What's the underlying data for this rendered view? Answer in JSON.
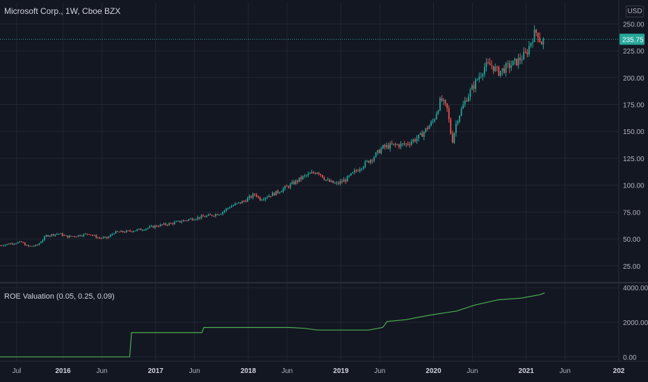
{
  "header": {
    "title": "Microsoft Corp., 1W, Cboe BZX",
    "currency": "USD",
    "indicator_title": "ROE Valuation (0.05, 0.25, 0.09)"
  },
  "colors": {
    "background": "#131722",
    "grid": "#232733",
    "up": "#26a69a",
    "down": "#ef5350",
    "indicator_line": "#4caf50",
    "axis_text": "#b2b5be",
    "last_price_bg": "#26a69a"
  },
  "chart_data": [
    {
      "type": "candlestick",
      "title": "Microsoft Corp., 1W, Cboe BZX",
      "ylabel": "USD",
      "ylim": [
        10,
        258
      ],
      "xlim": [
        2015.32,
        2022.0
      ],
      "y_ticks": [
        "25.00",
        "50.00",
        "75.00",
        "100.00",
        "125.00",
        "150.00",
        "175.00",
        "200.00",
        "225.00",
        "250.00"
      ],
      "y_tick_values": [
        25,
        50,
        75,
        100,
        125,
        150,
        175,
        200,
        225,
        250
      ],
      "x_ticks": [
        "Jul",
        "2016",
        "Jun",
        "2017",
        "Jun",
        "2018",
        "Jun",
        "2019",
        "Jun",
        "2020",
        "Jun",
        "2021",
        "Jun",
        "202"
      ],
      "x_tick_values": [
        2015.5,
        2016.0,
        2016.42,
        2017.0,
        2017.42,
        2018.0,
        2018.42,
        2019.0,
        2019.42,
        2020.0,
        2020.42,
        2021.0,
        2021.42,
        2022.0
      ],
      "last_price": "235.75",
      "last_price_value": 235.75,
      "price_path": [
        [
          2015.32,
          44
        ],
        [
          2015.45,
          46
        ],
        [
          2015.55,
          47
        ],
        [
          2015.62,
          43
        ],
        [
          2015.72,
          44
        ],
        [
          2015.82,
          53
        ],
        [
          2015.95,
          55
        ],
        [
          2016.05,
          52
        ],
        [
          2016.15,
          53
        ],
        [
          2016.28,
          55
        ],
        [
          2016.38,
          51
        ],
        [
          2016.48,
          51
        ],
        [
          2016.55,
          56
        ],
        [
          2016.7,
          57
        ],
        [
          2016.85,
          59
        ],
        [
          2017.0,
          62
        ],
        [
          2017.2,
          65
        ],
        [
          2017.4,
          69
        ],
        [
          2017.6,
          72
        ],
        [
          2017.7,
          74
        ],
        [
          2017.8,
          80
        ],
        [
          2017.95,
          85
        ],
        [
          2018.08,
          92
        ],
        [
          2018.12,
          87
        ],
        [
          2018.3,
          93
        ],
        [
          2018.45,
          100
        ],
        [
          2018.6,
          108
        ],
        [
          2018.75,
          113
        ],
        [
          2018.85,
          104
        ],
        [
          2018.95,
          101
        ],
        [
          2019.05,
          105
        ],
        [
          2019.2,
          116
        ],
        [
          2019.35,
          126
        ],
        [
          2019.45,
          135
        ],
        [
          2019.55,
          137
        ],
        [
          2019.7,
          138
        ],
        [
          2019.85,
          145
        ],
        [
          2020.0,
          160
        ],
        [
          2020.08,
          180
        ],
        [
          2020.15,
          170
        ],
        [
          2020.2,
          140
        ],
        [
          2020.25,
          160
        ],
        [
          2020.35,
          180
        ],
        [
          2020.45,
          195
        ],
        [
          2020.55,
          210
        ],
        [
          2020.62,
          212
        ],
        [
          2020.7,
          205
        ],
        [
          2020.8,
          210
        ],
        [
          2020.9,
          215
        ],
        [
          2021.0,
          222
        ],
        [
          2021.08,
          240
        ],
        [
          2021.12,
          243
        ],
        [
          2021.16,
          232
        ],
        [
          2021.2,
          236
        ]
      ]
    },
    {
      "type": "line",
      "title": "ROE Valuation (0.05, 0.25, 0.09)",
      "ylim": [
        -250,
        4250
      ],
      "y_ticks": [
        "0.00",
        "2000.00",
        "4000.00"
      ],
      "y_tick_values": [
        0,
        2000,
        4000
      ],
      "series": [
        {
          "values": [
            [
              2015.32,
              0
            ],
            [
              2016.72,
              0
            ],
            [
              2016.74,
              1400
            ],
            [
              2017.5,
              1400
            ],
            [
              2017.52,
              1700
            ],
            [
              2018.45,
              1700
            ],
            [
              2018.6,
              1650
            ],
            [
              2018.75,
              1550
            ],
            [
              2019.3,
              1550
            ],
            [
              2019.45,
              1700
            ],
            [
              2019.5,
              2050
            ],
            [
              2019.7,
              2150
            ],
            [
              2019.95,
              2400
            ],
            [
              2020.25,
              2650
            ],
            [
              2020.45,
              3000
            ],
            [
              2020.7,
              3300
            ],
            [
              2020.95,
              3400
            ],
            [
              2021.15,
              3600
            ],
            [
              2021.2,
              3700
            ]
          ]
        }
      ]
    }
  ]
}
